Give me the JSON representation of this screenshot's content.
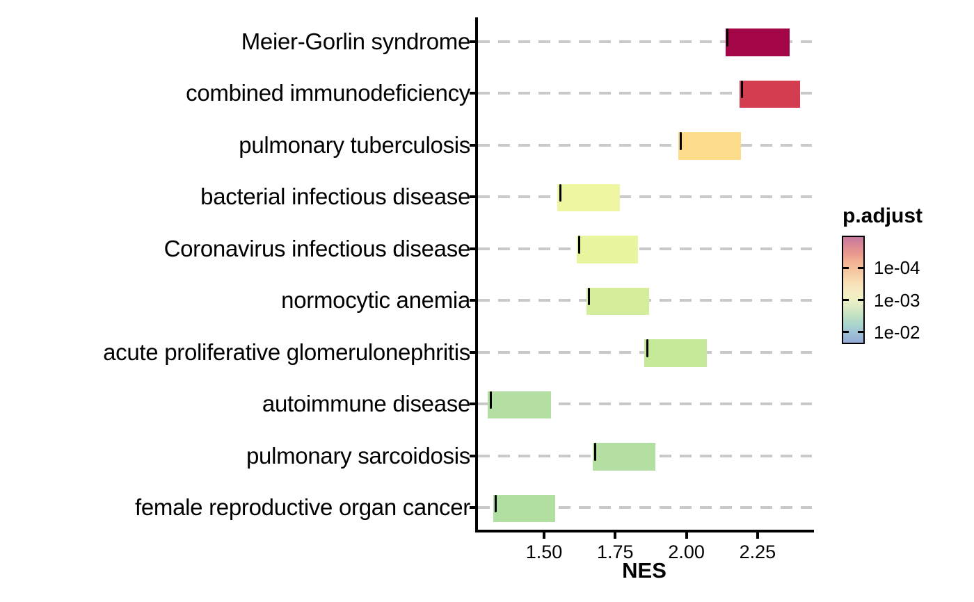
{
  "chart_data": {
    "type": "bar",
    "variant": "gsea-enrichment-ridge",
    "title": "",
    "xlabel": "NES",
    "xlim": [
      1.262,
      2.45
    ],
    "x_ticks": [
      {
        "label": "1.50",
        "value": 1.5
      },
      {
        "label": "1.75",
        "value": 1.75
      },
      {
        "label": "2.00",
        "value": 2.0
      },
      {
        "label": "2.25",
        "value": 2.25
      }
    ],
    "grid": {
      "style": "dashed",
      "color": "#c9c9c9",
      "direction": "horizontal"
    },
    "axis_color": "#000000",
    "text_color": "#000000",
    "categories": [
      "Meier-Gorlin syndrome",
      "combined immunodeficiency",
      "pulmonary tuberculosis",
      "bacterial infectious disease",
      "Coronavirus infectious disease",
      "normocytic anemia",
      "acute proliferative glomerulonephritis",
      "autoimmune disease",
      "pulmonary sarcoidosis",
      "female reproductive organ cancer"
    ],
    "bars": [
      {
        "label": "Meier-Gorlin syndrome",
        "nes_start": 2.138,
        "nes_end": 2.362,
        "point_nes": 2.145,
        "fill": "#a40546"
      },
      {
        "label": "combined immunodeficiency",
        "nes_start": 2.186,
        "nes_end": 2.399,
        "point_nes": 2.196,
        "fill": "#d43d50"
      },
      {
        "label": "pulmonary tuberculosis",
        "nes_start": 1.971,
        "nes_end": 2.191,
        "point_nes": 1.98,
        "fill": "#fcdb8a"
      },
      {
        "label": "bacterial infectious disease",
        "nes_start": 1.547,
        "nes_end": 1.766,
        "point_nes": 1.557,
        "fill": "#eef6a1"
      },
      {
        "label": "Coronavirus infectious disease",
        "nes_start": 1.615,
        "nes_end": 1.831,
        "point_nes": 1.624,
        "fill": "#e9f49e"
      },
      {
        "label": "normocytic anemia",
        "nes_start": 1.648,
        "nes_end": 1.868,
        "point_nes": 1.658,
        "fill": "#d4ed9b"
      },
      {
        "label": "acute proliferative glomerulonephritis",
        "nes_start": 1.853,
        "nes_end": 2.071,
        "point_nes": 1.862,
        "fill": "#c5e899"
      },
      {
        "label": "autoimmune disease",
        "nes_start": 1.303,
        "nes_end": 1.524,
        "point_nes": 1.313,
        "fill": "#b3e0a2"
      },
      {
        "label": "pulmonary sarcoidosis",
        "nes_start": 1.67,
        "nes_end": 1.89,
        "point_nes": 1.68,
        "fill": "#b3e0a2"
      },
      {
        "label": "female reproductive organ cancer",
        "nes_start": 1.321,
        "nes_end": 1.54,
        "point_nes": 1.331,
        "fill": "#b1dfa1"
      }
    ],
    "legend": {
      "title": "p.adjust",
      "position": "right",
      "ticks": [
        {
          "label": "1e-04",
          "pos_pct": 29.7
        },
        {
          "label": "1e-03",
          "pos_pct": 59.4
        },
        {
          "label": "1e-02",
          "pos_pct": 89.0
        }
      ],
      "gradient_top_to_bottom": [
        {
          "color": "#c5799f",
          "pct": 0
        },
        {
          "color": "#da8795",
          "pct": 8
        },
        {
          "color": "#ea9a8d",
          "pct": 16
        },
        {
          "color": "#f2b394",
          "pct": 24
        },
        {
          "color": "#f6c8a2",
          "pct": 33
        },
        {
          "color": "#f7dcb2",
          "pct": 42
        },
        {
          "color": "#f6e9c1",
          "pct": 50
        },
        {
          "color": "#f1f0c5",
          "pct": 58
        },
        {
          "color": "#dcebc3",
          "pct": 66
        },
        {
          "color": "#c3e2c3",
          "pct": 74
        },
        {
          "color": "#abd6cb",
          "pct": 82
        },
        {
          "color": "#9fc4d6",
          "pct": 90
        },
        {
          "color": "#96a9d6",
          "pct": 100
        }
      ],
      "border_color": "#000000"
    }
  }
}
